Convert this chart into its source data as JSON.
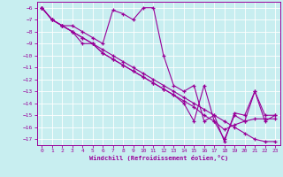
{
  "xlabel": "Windchill (Refroidissement éolien,°C)",
  "xlim": [
    -0.5,
    23.5
  ],
  "ylim": [
    -17.5,
    -5.5
  ],
  "yticks": [
    -6,
    -7,
    -8,
    -9,
    -10,
    -11,
    -12,
    -13,
    -14,
    -15,
    -16,
    -17
  ],
  "xticks": [
    0,
    1,
    2,
    3,
    4,
    5,
    6,
    7,
    8,
    9,
    10,
    11,
    12,
    13,
    14,
    15,
    16,
    17,
    18,
    19,
    20,
    21,
    22,
    23
  ],
  "bg_color": "#c8eef0",
  "line_color": "#990099",
  "grid_color": "#ffffff",
  "s1_x": [
    0,
    1,
    2,
    3,
    4,
    5,
    6,
    7,
    8,
    9,
    10,
    11,
    12,
    13,
    14,
    15,
    16,
    17,
    18,
    19,
    20,
    21,
    22,
    23
  ],
  "s1_y": [
    -6.0,
    -7.0,
    -7.5,
    -7.5,
    -8.0,
    -8.5,
    -9.0,
    -6.2,
    -6.5,
    -7.0,
    -6.0,
    -6.0,
    -10.0,
    -12.5,
    -13.0,
    -12.5,
    -15.5,
    -15.0,
    -17.2,
    -14.8,
    -15.0,
    -13.0,
    -15.0,
    -15.0
  ],
  "s2_x": [
    0,
    1,
    2,
    3,
    4,
    5,
    6,
    7,
    8,
    9,
    10,
    11,
    12,
    13,
    14,
    15,
    16,
    17,
    18,
    19,
    20,
    21,
    22,
    23
  ],
  "s2_y": [
    -6.0,
    -7.0,
    -7.5,
    -8.0,
    -8.5,
    -9.0,
    -9.5,
    -10.0,
    -10.5,
    -11.0,
    -11.5,
    -12.0,
    -12.5,
    -13.0,
    -13.5,
    -14.0,
    -14.5,
    -15.0,
    -15.5,
    -16.0,
    -16.5,
    -17.0,
    -17.2,
    -17.2
  ],
  "s3_x": [
    0,
    1,
    2,
    3,
    4,
    5,
    6,
    7,
    8,
    9,
    10,
    11,
    12,
    13,
    14,
    15,
    16,
    17,
    18,
    19,
    20,
    21,
    22,
    23
  ],
  "s3_y": [
    -6.0,
    -7.0,
    -7.5,
    -8.0,
    -8.5,
    -9.0,
    -9.8,
    -10.3,
    -10.8,
    -11.3,
    -11.8,
    -12.3,
    -12.8,
    -13.3,
    -13.8,
    -14.3,
    -15.0,
    -15.5,
    -16.2,
    -15.8,
    -15.5,
    -15.3,
    -15.3,
    -15.3
  ],
  "s4_x": [
    0,
    1,
    2,
    3,
    4,
    5,
    6,
    7,
    8,
    9,
    10,
    11,
    12,
    13,
    14,
    15,
    16,
    17,
    18,
    19,
    20,
    21,
    22,
    23
  ],
  "s4_y": [
    -6.0,
    -7.0,
    -7.5,
    -8.0,
    -9.0,
    -9.0,
    -9.8,
    -10.3,
    -10.8,
    -11.3,
    -11.8,
    -12.3,
    -12.8,
    -13.3,
    -14.0,
    -15.5,
    -12.5,
    -15.5,
    -17.0,
    -15.0,
    -15.5,
    -13.0,
    -15.5,
    -15.0
  ]
}
